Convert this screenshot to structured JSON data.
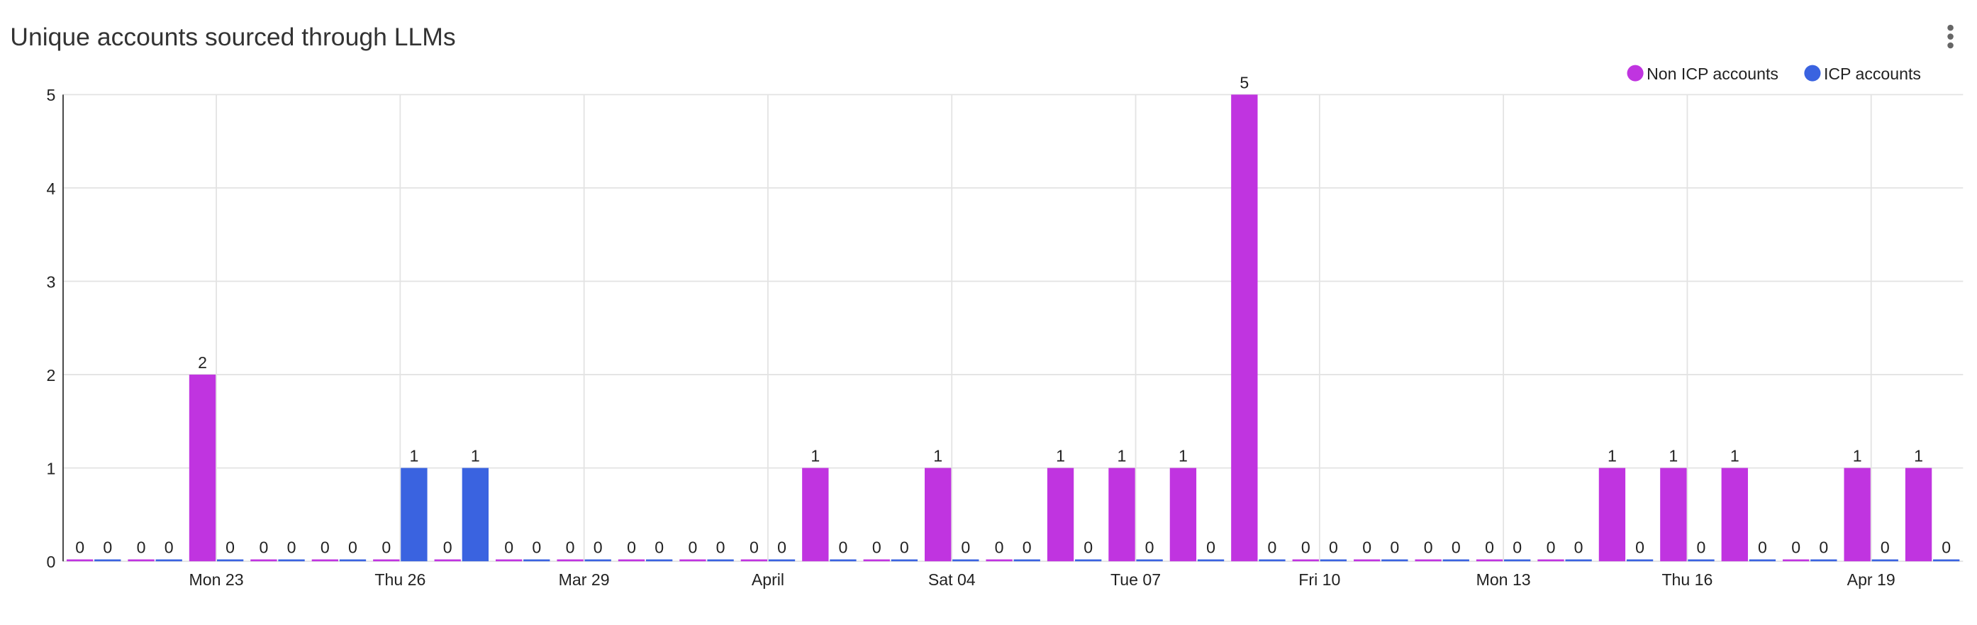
{
  "chart_data": {
    "type": "bar",
    "title": "Unique accounts sourced through LLMs",
    "categories": [
      null,
      null,
      "Mon 23",
      null,
      null,
      "Thu 26",
      null,
      null,
      "Mar 29",
      null,
      null,
      "April",
      null,
      null,
      "Sat 04",
      null,
      null,
      "Tue 07",
      null,
      null,
      "Fri 10",
      null,
      null,
      "Mon 13",
      null,
      null,
      "Thu 16",
      null,
      null,
      "Apr 19",
      null
    ],
    "series": [
      {
        "name": "Non ICP accounts",
        "color": "#c034e0",
        "values": [
          0,
          0,
          2,
          0,
          0,
          0,
          0,
          0,
          0,
          0,
          0,
          0,
          1,
          0,
          1,
          0,
          1,
          1,
          1,
          5,
          0,
          0,
          0,
          0,
          0,
          1,
          1,
          1,
          0,
          1,
          1
        ]
      },
      {
        "name": "ICP accounts",
        "color": "#3a63e0",
        "values": [
          0,
          0,
          0,
          0,
          0,
          1,
          1,
          0,
          0,
          0,
          0,
          0,
          0,
          0,
          0,
          0,
          0,
          0,
          0,
          0,
          0,
          0,
          0,
          0,
          0,
          0,
          0,
          0,
          0,
          0,
          0
        ]
      }
    ],
    "ylim": [
      0,
      5
    ],
    "yticks": [
      0,
      1,
      2,
      3,
      4,
      5
    ],
    "grid": true,
    "legend": "top-right"
  }
}
